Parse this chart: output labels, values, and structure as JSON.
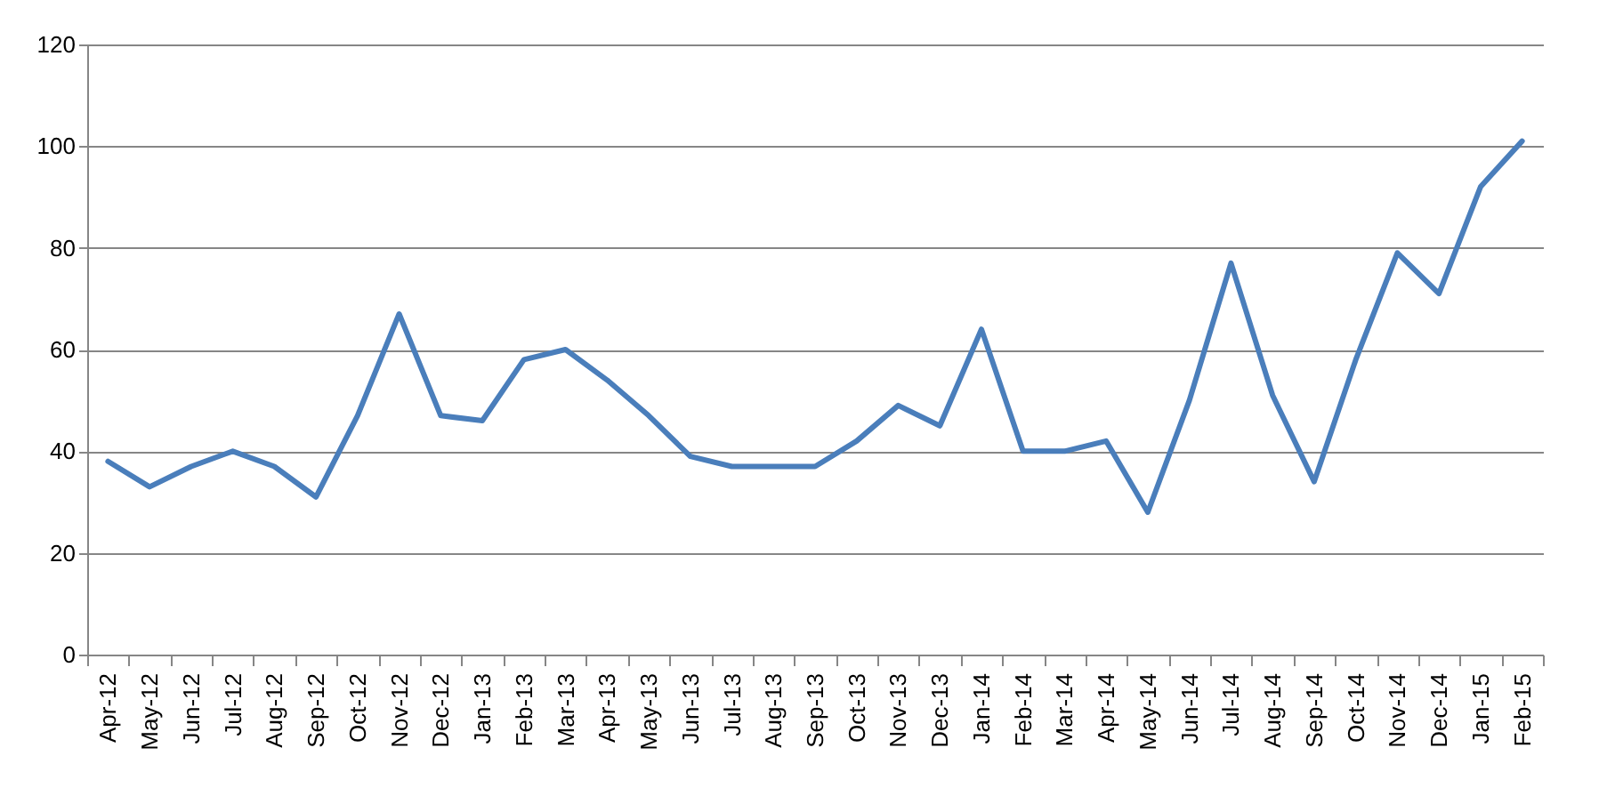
{
  "chart_data": {
    "type": "line",
    "categories": [
      "Apr-12",
      "May-12",
      "Jun-12",
      "Jul-12",
      "Aug-12",
      "Sep-12",
      "Oct-12",
      "Nov-12",
      "Dec-12",
      "Jan-13",
      "Feb-13",
      "Mar-13",
      "Apr-13",
      "May-13",
      "Jun-13",
      "Jul-13",
      "Aug-13",
      "Sep-13",
      "Oct-13",
      "Nov-13",
      "Dec-13",
      "Jan-14",
      "Feb-14",
      "Mar-14",
      "Apr-14",
      "May-14",
      "Jun-14",
      "Jul-14",
      "Aug-14",
      "Sep-14",
      "Oct-14",
      "Nov-14",
      "Dec-14",
      "Jan-15",
      "Feb-15"
    ],
    "series": [
      {
        "color": "#4a7ebb",
        "values": [
          38,
          33,
          37,
          40,
          37,
          31,
          47,
          67,
          47,
          46,
          58,
          60,
          54,
          47,
          39,
          37,
          37,
          37,
          42,
          49,
          45,
          64,
          40,
          40,
          42,
          28,
          50,
          77,
          51,
          34,
          58,
          79,
          71,
          92,
          101
        ]
      }
    ],
    "ylim": [
      0,
      120
    ],
    "yticks": [
      0,
      20,
      40,
      60,
      80,
      100,
      120
    ],
    "grid": "y",
    "marker": "none",
    "line_style": "solid",
    "legend": false
  }
}
